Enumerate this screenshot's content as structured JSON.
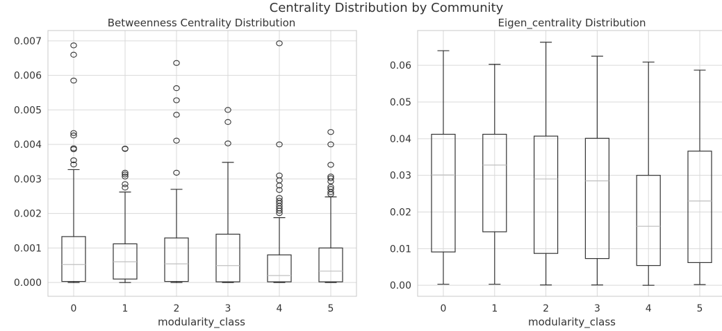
{
  "figure": {
    "suptitle": "Centrality Distribution by Community"
  },
  "chart_data": [
    {
      "type": "box",
      "title": "Betweenness Centrality Distribution",
      "xlabel": "modularity_class",
      "ylabel": "",
      "ylim": [
        -0.0004,
        0.0073
      ],
      "yticks": [
        0.0,
        0.001,
        0.002,
        0.003,
        0.004,
        0.005,
        0.006,
        0.007
      ],
      "ytick_labels": [
        "0.000",
        "0.001",
        "0.002",
        "0.003",
        "0.004",
        "0.005",
        "0.006",
        "0.007"
      ],
      "grid": true,
      "categories": [
        "0",
        "1",
        "2",
        "3",
        "4",
        "5"
      ],
      "boxes": [
        {
          "whisker_low": 0.0,
          "q1": 3e-05,
          "median": 0.00052,
          "q3": 0.00133,
          "whisker_high": 0.00327,
          "outliers": [
            0.00342,
            0.00354,
            0.00386,
            0.00389,
            0.00426,
            0.00433,
            0.00585,
            0.0066,
            0.00687
          ]
        },
        {
          "whisker_low": 0.0,
          "q1": 0.0001,
          "median": 0.0006,
          "q3": 0.00112,
          "whisker_high": 0.00262,
          "outliers": [
            0.00275,
            0.00285,
            0.00307,
            0.00313,
            0.00318,
            0.00387,
            0.00388
          ]
        },
        {
          "whisker_low": 0.0,
          "q1": 3e-05,
          "median": 0.00054,
          "q3": 0.00129,
          "whisker_high": 0.0027,
          "outliers": [
            0.00318,
            0.00411,
            0.00486,
            0.00528,
            0.00563,
            0.00636
          ]
        },
        {
          "whisker_low": 0.0,
          "q1": 2e-05,
          "median": 0.00049,
          "q3": 0.0014,
          "whisker_high": 0.00348,
          "outliers": [
            0.00403,
            0.00465,
            0.005
          ]
        },
        {
          "whisker_low": 0.0,
          "q1": 2e-05,
          "median": 0.0002,
          "q3": 0.0008,
          "whisker_high": 0.00188,
          "outliers": [
            0.00201,
            0.00208,
            0.00215,
            0.00222,
            0.0023,
            0.00237,
            0.00245,
            0.00268,
            0.00281,
            0.00296,
            0.0031,
            0.004,
            0.00693
          ]
        },
        {
          "whisker_low": 0.0,
          "q1": 2e-05,
          "median": 0.00033,
          "q3": 0.001,
          "whisker_high": 0.00248,
          "outliers": [
            0.00256,
            0.00262,
            0.00271,
            0.00277,
            0.00293,
            0.00302,
            0.00307,
            0.00341,
            0.004,
            0.00436
          ]
        }
      ]
    },
    {
      "type": "box",
      "title": "Eigen_centrality Distribution",
      "xlabel": "modularity_class",
      "ylabel": "",
      "ylim": [
        -0.003,
        0.0695
      ],
      "yticks": [
        0.0,
        0.01,
        0.02,
        0.03,
        0.04,
        0.05,
        0.06
      ],
      "ytick_labels": [
        "0.00",
        "0.01",
        "0.02",
        "0.03",
        "0.04",
        "0.05",
        "0.06"
      ],
      "grid": true,
      "categories": [
        "0",
        "1",
        "2",
        "3",
        "4",
        "5"
      ],
      "boxes": [
        {
          "whisker_low": 0.0003,
          "q1": 0.0091,
          "median": 0.0301,
          "q3": 0.0412,
          "whisker_high": 0.064,
          "outliers": []
        },
        {
          "whisker_low": 0.0003,
          "q1": 0.0146,
          "median": 0.0328,
          "q3": 0.0412,
          "whisker_high": 0.0603,
          "outliers": []
        },
        {
          "whisker_low": 0.0001,
          "q1": 0.0087,
          "median": 0.029,
          "q3": 0.0407,
          "whisker_high": 0.0663,
          "outliers": []
        },
        {
          "whisker_low": 0.0001,
          "q1": 0.0073,
          "median": 0.0285,
          "q3": 0.0401,
          "whisker_high": 0.0625,
          "outliers": []
        },
        {
          "whisker_low": 0.0,
          "q1": 0.0054,
          "median": 0.0161,
          "q3": 0.03,
          "whisker_high": 0.0609,
          "outliers": []
        },
        {
          "whisker_low": 0.0002,
          "q1": 0.0062,
          "median": 0.023,
          "q3": 0.0366,
          "whisker_high": 0.0587,
          "outliers": []
        }
      ]
    }
  ],
  "colors": {
    "box": "#333333",
    "median": "#c0c0c0",
    "grid": "#d9d9d9",
    "frame": "#c8c8c8",
    "text": "#333333"
  }
}
